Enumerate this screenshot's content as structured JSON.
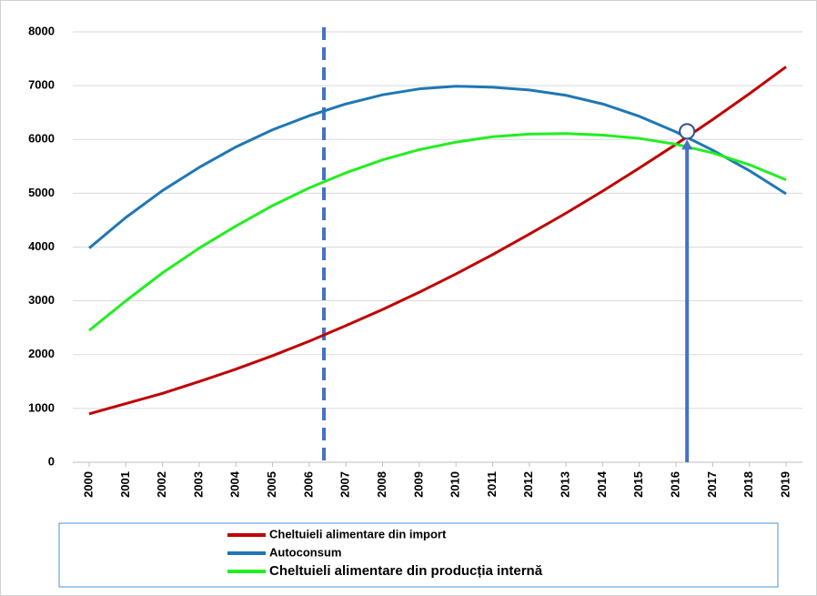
{
  "chart_data": {
    "type": "line",
    "x": [
      2000,
      2001,
      2002,
      2003,
      2004,
      2005,
      2006,
      2007,
      2008,
      2009,
      2010,
      2011,
      2012,
      2013,
      2014,
      2015,
      2016,
      2017,
      2018,
      2019
    ],
    "xlim": [
      2000,
      2019
    ],
    "ylim": [
      0,
      8000
    ],
    "yticks": [
      0,
      1000,
      2000,
      3000,
      4000,
      5000,
      6000,
      7000,
      8000
    ],
    "grid": true,
    "series": [
      {
        "name": "Cheltuieli alimentare din import",
        "color": "#c00000",
        "values": [
          900,
          1090,
          1280,
          1500,
          1730,
          1980,
          2250,
          2540,
          2840,
          3160,
          3500,
          3860,
          4240,
          4630,
          5040,
          5470,
          5910,
          6370,
          6850,
          7350
        ]
      },
      {
        "name": "Autoconsum",
        "color": "#1f77b4",
        "values": [
          3980,
          4550,
          5050,
          5480,
          5860,
          6180,
          6440,
          6660,
          6830,
          6940,
          6990,
          6970,
          6920,
          6820,
          6660,
          6430,
          6140,
          5800,
          5420,
          4990
        ]
      },
      {
        "name": "Cheltuieli alimentare din producția internă",
        "color": "#22ee22",
        "values": [
          2450,
          3000,
          3520,
          3980,
          4390,
          4770,
          5100,
          5380,
          5620,
          5810,
          5950,
          6050,
          6100,
          6110,
          6080,
          6020,
          5910,
          5750,
          5530,
          5250
        ]
      }
    ],
    "reference_line_x": 2006.4,
    "intersection": {
      "x": 2016.3,
      "y": 6150
    }
  }
}
